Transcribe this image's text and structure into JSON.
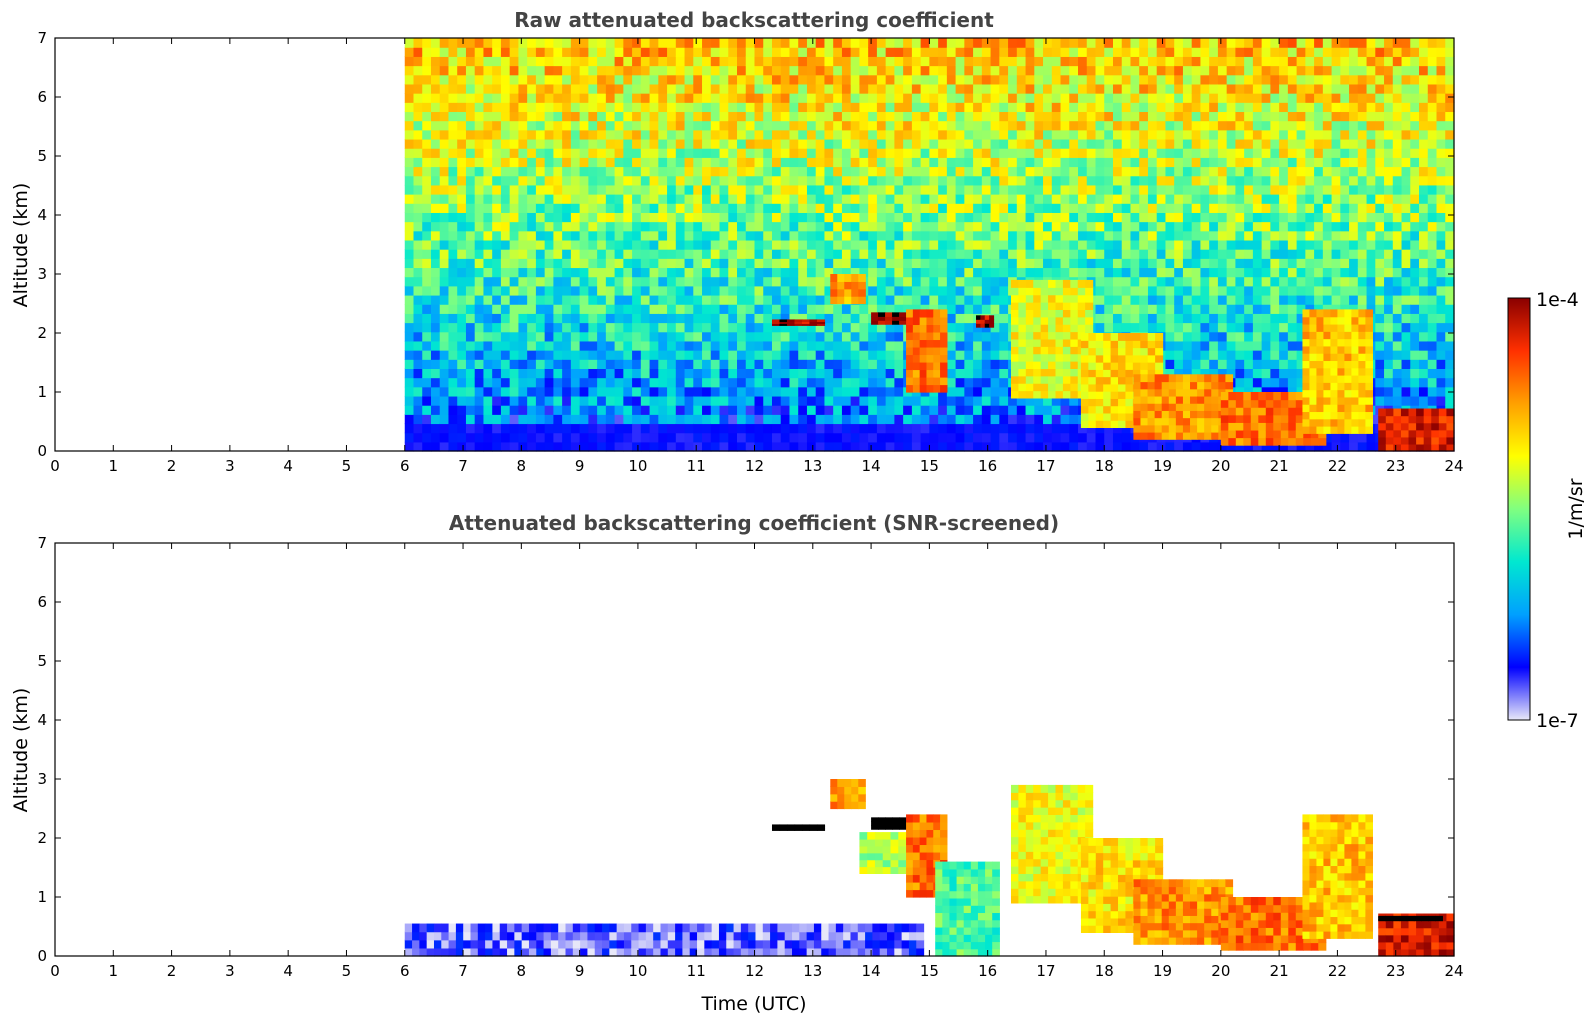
{
  "colorbar": {
    "min_label": "1e-7",
    "max_label": "1e-4",
    "unit_label": "1/m/sr",
    "scale": "log",
    "range": [
      1e-07,
      0.0001
    ],
    "colormap": "jet",
    "colors": [
      "#e8e8f8",
      "#0000ff",
      "#00a0ff",
      "#00e8d0",
      "#80ff80",
      "#ffff00",
      "#ffa000",
      "#ff3000",
      "#8a0000"
    ]
  },
  "chart_data": [
    {
      "type": "heatmap",
      "title": "Raw attenuated backscattering coefficient",
      "xlabel": "",
      "ylabel": "Altitude (km)",
      "xlim": [
        0,
        24
      ],
      "ylim": [
        0,
        7
      ],
      "xticks": [
        "0",
        "1",
        "2",
        "3",
        "4",
        "5",
        "6",
        "7",
        "8",
        "9",
        "10",
        "11",
        "12",
        "13",
        "14",
        "15",
        "16",
        "17",
        "18",
        "19",
        "20",
        "21",
        "22",
        "23",
        "24"
      ],
      "yticks": [
        "0",
        "1",
        "2",
        "3",
        "4",
        "5",
        "6",
        "7"
      ],
      "data_start_time": 6,
      "noise": true,
      "features": [
        {
          "t0": 12.3,
          "t1": 13.2,
          "h0": 2.13,
          "h1": 2.23,
          "level": 0.97
        },
        {
          "t0": 13.3,
          "t1": 13.9,
          "h0": 2.5,
          "h1": 3.0,
          "level": 0.75
        },
        {
          "t0": 14.0,
          "t1": 14.6,
          "h0": 2.15,
          "h1": 2.35,
          "level": 0.98
        },
        {
          "t0": 14.6,
          "t1": 15.3,
          "h0": 1.0,
          "h1": 2.4,
          "level": 0.8
        },
        {
          "t0": 15.8,
          "t1": 16.1,
          "h0": 2.1,
          "h1": 2.3,
          "level": 0.97
        },
        {
          "t0": 16.4,
          "t1": 17.8,
          "h0": 0.9,
          "h1": 2.9,
          "level": 0.62
        },
        {
          "t0": 17.6,
          "t1": 19.0,
          "h0": 0.4,
          "h1": 2.0,
          "level": 0.66
        },
        {
          "t0": 18.5,
          "t1": 20.2,
          "h0": 0.2,
          "h1": 1.3,
          "level": 0.76
        },
        {
          "t0": 20.0,
          "t1": 21.8,
          "h0": 0.1,
          "h1": 1.0,
          "level": 0.8
        },
        {
          "t0": 21.4,
          "t1": 22.6,
          "h0": 0.3,
          "h1": 2.4,
          "level": 0.7
        },
        {
          "t0": 22.7,
          "t1": 24.0,
          "h0": 0.0,
          "h1": 0.72,
          "level": 0.92
        }
      ]
    },
    {
      "type": "heatmap",
      "title": "Attenuated backscattering coefficient (SNR-screened)",
      "xlabel": "Time (UTC)",
      "ylabel": "Altitude (km)",
      "xlim": [
        0,
        24
      ],
      "ylim": [
        0,
        7
      ],
      "xticks": [
        "0",
        "1",
        "2",
        "3",
        "4",
        "5",
        "6",
        "7",
        "8",
        "9",
        "10",
        "11",
        "12",
        "13",
        "14",
        "15",
        "16",
        "17",
        "18",
        "19",
        "20",
        "21",
        "22",
        "23",
        "24"
      ],
      "yticks": [
        "0",
        "1",
        "2",
        "3",
        "4",
        "5",
        "6",
        "7"
      ],
      "data_start_time": 6,
      "noise": false,
      "features": [
        {
          "t0": 6.0,
          "t1": 14.9,
          "h0": 0.0,
          "h1": 0.55,
          "level": 0.08
        },
        {
          "t0": 12.3,
          "t1": 13.2,
          "h0": 2.13,
          "h1": 2.23,
          "level": 1.1
        },
        {
          "t0": 13.3,
          "t1": 13.9,
          "h0": 2.5,
          "h1": 3.0,
          "level": 0.75
        },
        {
          "t0": 14.0,
          "t1": 14.6,
          "h0": 2.15,
          "h1": 2.35,
          "level": 1.1
        },
        {
          "t0": 13.8,
          "t1": 14.6,
          "h0": 1.4,
          "h1": 2.1,
          "level": 0.55
        },
        {
          "t0": 14.6,
          "t1": 15.3,
          "h0": 1.0,
          "h1": 2.4,
          "level": 0.8
        },
        {
          "t0": 15.1,
          "t1": 16.2,
          "h0": 0.0,
          "h1": 1.6,
          "level": 0.45
        },
        {
          "t0": 16.4,
          "t1": 17.8,
          "h0": 0.9,
          "h1": 2.9,
          "level": 0.62
        },
        {
          "t0": 17.6,
          "t1": 19.0,
          "h0": 0.4,
          "h1": 2.0,
          "level": 0.66
        },
        {
          "t0": 18.5,
          "t1": 20.2,
          "h0": 0.2,
          "h1": 1.3,
          "level": 0.76
        },
        {
          "t0": 20.0,
          "t1": 21.8,
          "h0": 0.1,
          "h1": 1.0,
          "level": 0.8
        },
        {
          "t0": 21.4,
          "t1": 22.6,
          "h0": 0.3,
          "h1": 2.4,
          "level": 0.7
        },
        {
          "t0": 22.7,
          "t1": 24.0,
          "h0": 0.0,
          "h1": 0.72,
          "level": 0.92
        },
        {
          "t0": 22.7,
          "t1": 23.8,
          "h0": 0.6,
          "h1": 0.68,
          "level": 1.1
        }
      ]
    }
  ]
}
